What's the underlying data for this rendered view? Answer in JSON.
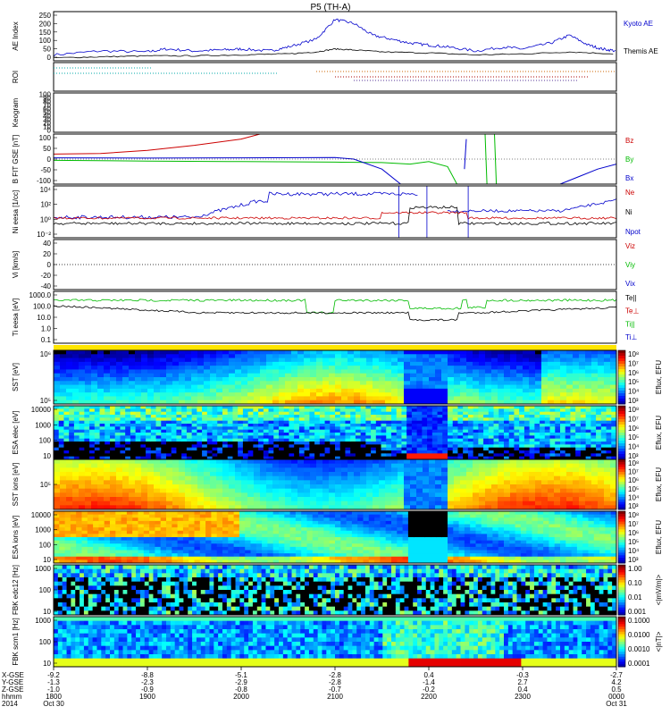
{
  "title": "P5 (TH-A)",
  "chart_data": {
    "type": "line",
    "title": "P5 (TH-A)",
    "x_axis": {
      "row_labels": [
        "X-GSE",
        "Y-GSE",
        "Z-GSE",
        "hhmm",
        "2014"
      ],
      "ticks": [
        {
          "x": "-9.2",
          "y": "-1.3",
          "z": "-1.0",
          "hhmm": "1800",
          "date": "Oct 30"
        },
        {
          "x": "-8.8",
          "y": "-2.3",
          "z": "-0.9",
          "hhmm": "1900",
          "date": ""
        },
        {
          "x": "-5.1",
          "y": "-2.9",
          "z": "-0.8",
          "hhmm": "2000",
          "date": ""
        },
        {
          "x": "-2.8",
          "y": "-2.8",
          "z": "-0.7",
          "hhmm": "2100",
          "date": ""
        },
        {
          "x": "0.4",
          "y": "-1.4",
          "z": "-0.2",
          "hhmm": "2200",
          "date": ""
        },
        {
          "x": "-0.3",
          "y": "2.7",
          "z": "0.4",
          "hhmm": "2300",
          "date": ""
        },
        {
          "x": "-2.7",
          "y": "4.2",
          "z": "0.5",
          "hhmm": "0000",
          "date": "Oct 31"
        }
      ]
    },
    "panels": [
      {
        "id": "ae",
        "ylabel": "AE Index",
        "yticks": [
          "250",
          "200",
          "150",
          "100",
          "50",
          "0"
        ],
        "legend": [
          {
            "name": "Kyoto AE",
            "color": "#0000cc"
          },
          {
            "name": "Themis AE",
            "color": "#000000"
          }
        ],
        "series": [
          {
            "name": "Kyoto AE",
            "t": [
              0,
              0.5,
              1,
              1.2,
              1.5,
              1.8,
              2,
              2.3,
              2.5,
              2.8,
              3,
              3.2,
              3.4,
              3.6,
              3.8,
              4,
              4.2,
              4.5,
              4.8,
              5,
              5.3,
              5.5,
              5.7,
              5.85,
              6
            ],
            "v": [
              30,
              50,
              45,
              60,
              50,
              55,
              60,
              50,
              70,
              110,
              210,
              190,
              130,
              110,
              90,
              80,
              70,
              50,
              70,
              60,
              90,
              130,
              80,
              60,
              50
            ]
          },
          {
            "name": "Themis AE",
            "t": [
              0,
              0.5,
              1,
              1.5,
              2,
              2.5,
              2.8,
              3,
              3.2,
              3.5,
              4,
              4.5,
              5,
              5.5,
              6
            ],
            "v": [
              15,
              20,
              25,
              25,
              30,
              35,
              45,
              60,
              55,
              45,
              40,
              30,
              35,
              45,
              35
            ]
          }
        ]
      },
      {
        "id": "roi",
        "ylabel": "ROI"
      },
      {
        "id": "keogram",
        "ylabel": "Keogram",
        "yticks": [
          "100",
          "90",
          "80",
          "70",
          "60",
          "50",
          "40",
          "30",
          "20",
          "10",
          "0"
        ]
      },
      {
        "id": "bfit",
        "ylabel": "B FIT GSE [nT]",
        "yticks": [
          "100",
          "50",
          "0",
          "-50",
          "-100"
        ],
        "legend": [
          {
            "name": "Bz",
            "color": "#cc0000"
          },
          {
            "name": "By",
            "color": "#00bb00"
          },
          {
            "name": "Bx",
            "color": "#0000cc"
          }
        ]
      },
      {
        "id": "ni",
        "ylabel": "Ni eesa [1/cc]",
        "yticks": [
          "10⁴",
          "10²",
          "10⁰",
          "10⁻²"
        ],
        "legend": [
          {
            "name": "Ne",
            "color": "#cc0000"
          },
          {
            "name": "Ni",
            "color": "#000000"
          },
          {
            "name": "Npot",
            "color": "#0000cc"
          }
        ]
      },
      {
        "id": "vi",
        "ylabel": "Vi [km/s]",
        "yticks": [
          "40",
          "20",
          "0",
          "-20",
          "-40"
        ],
        "legend": [
          {
            "name": "Viz",
            "color": "#cc0000"
          },
          {
            "name": "Viy",
            "color": "#00bb00"
          },
          {
            "name": "Vix",
            "color": "#0000cc"
          }
        ]
      },
      {
        "id": "ti",
        "ylabel": "Ti eesa [eV]",
        "yticks": [
          "1000.0",
          "100.0",
          "10.0",
          "1.0",
          "0.1"
        ],
        "legend": [
          {
            "name": "Te||",
            "color": "#000000"
          },
          {
            "name": "Te⊥",
            "color": "#cc0000"
          },
          {
            "name": "Ti||",
            "color": "#00bb00"
          },
          {
            "name": "Ti⊥",
            "color": "#0000cc"
          }
        ]
      },
      {
        "id": "sst_e",
        "ylabel": "SST [eV]",
        "yticks": [
          "10⁶",
          "10⁵"
        ],
        "cbar": "Eflux, EFU",
        "cbar_ticks": [
          "10⁸",
          "10⁷",
          "10⁶",
          "10⁵",
          "10⁴",
          "10³"
        ]
      },
      {
        "id": "esa_e",
        "ylabel": "ESA elec [eV]",
        "yticks": [
          "10000",
          "1000",
          "100",
          "10"
        ],
        "cbar": "Eflux, EFU",
        "cbar_ticks": [
          "10⁸",
          "10⁷",
          "10⁶",
          "10⁵",
          "10⁴",
          "10³"
        ]
      },
      {
        "id": "sst_i",
        "ylabel": "SST ions [eV]",
        "yticks": [
          "10⁵"
        ],
        "cbar": "Eflux, EFU",
        "cbar_ticks": [
          "10⁸",
          "10⁷",
          "10⁶",
          "10⁵",
          "10⁴",
          "10³"
        ]
      },
      {
        "id": "esa_i",
        "ylabel": "ESA ions [eV]",
        "yticks": [
          "10000",
          "1000",
          "100",
          "10"
        ],
        "cbar": "Eflux, EFU",
        "cbar_ticks": [
          "10⁸",
          "10⁷",
          "10⁶",
          "10⁵",
          "10⁴",
          "10³"
        ]
      },
      {
        "id": "fbk1",
        "ylabel": "FBK edc12 [Hz]",
        "yticks": [
          "1000",
          "100",
          "10"
        ],
        "cbar": "<|mV/m|>",
        "cbar_ticks": [
          "1.00",
          "0.10",
          "0.01",
          "0.001"
        ]
      },
      {
        "id": "fbk2",
        "ylabel": "FBK scm1 [Hz]",
        "yticks": [
          "1000",
          "100",
          "10"
        ],
        "cbar": "<|nT|>",
        "cbar_ticks": [
          "0.1000",
          "0.0100",
          "0.0010",
          "0.0001"
        ]
      }
    ]
  }
}
